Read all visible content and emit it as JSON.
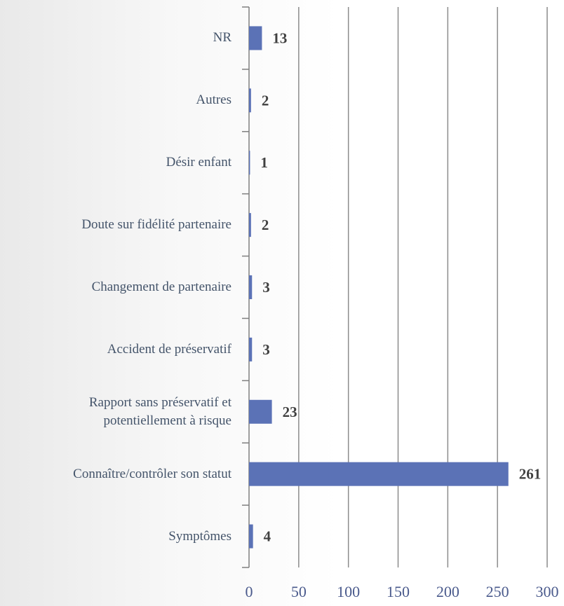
{
  "chart_data": {
    "type": "hbar",
    "categories": [
      "NR",
      "Autres",
      "Désir enfant",
      "Doute sur fidélité partenaire",
      "Changement de partenaire",
      "Accident de préservatif",
      "Rapport sans préservatif et\npotentiellement à risque",
      "Connaître/contrôler son statut",
      "Symptômes"
    ],
    "values": [
      13,
      2,
      1,
      2,
      3,
      3,
      23,
      261,
      4
    ],
    "color": "#5b72b6",
    "xlim": [
      0,
      300
    ],
    "xticks": [
      0,
      50,
      100,
      150,
      200,
      250,
      300
    ],
    "grid": true
  }
}
